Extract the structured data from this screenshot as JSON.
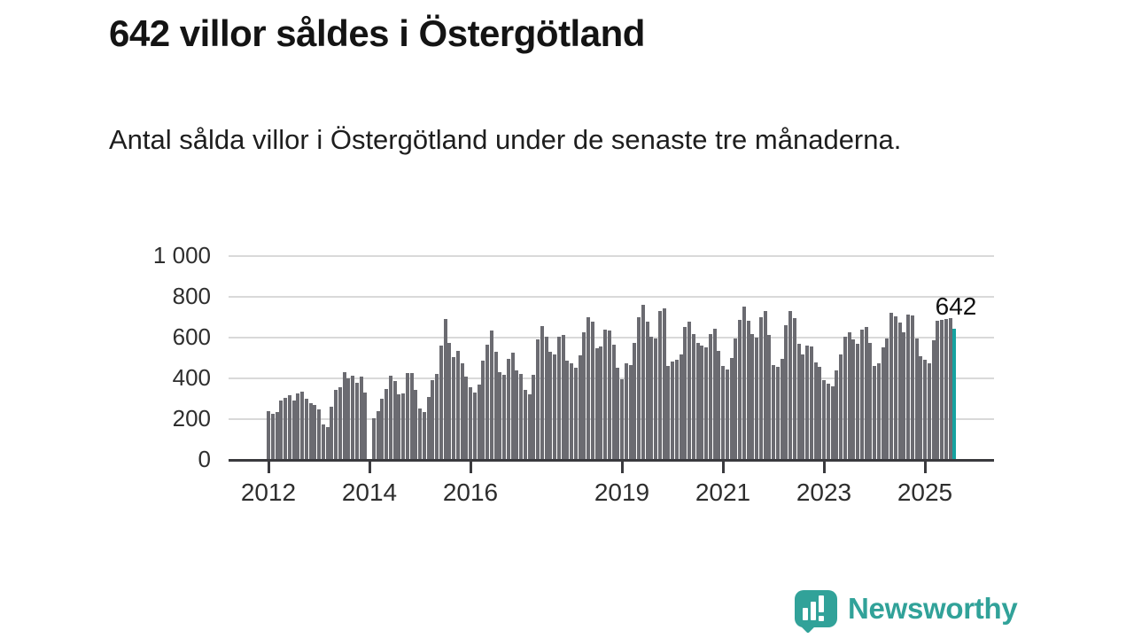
{
  "header": {
    "title": "642 villor såldes i Östergötland",
    "subtitle": "Antal sålda villor i Östergötland under de senaste tre månaderna."
  },
  "chart_data": {
    "type": "bar",
    "title": "642 villor såldes i Östergötland",
    "subtitle": "Antal sålda villor i Östergötland under de senaste tre månaderna.",
    "frequency": "monthly",
    "x_start": "2012-01",
    "x_end": "2025-08",
    "values": [
      239,
      228,
      233,
      293,
      304,
      316,
      293,
      328,
      333,
      300,
      277,
      268,
      250,
      175,
      160,
      260,
      345,
      355,
      430,
      400,
      415,
      378,
      408,
      330,
      null,
      205,
      240,
      300,
      350,
      415,
      385,
      322,
      328,
      428,
      428,
      345,
      252,
      235,
      310,
      390,
      420,
      560,
      690,
      575,
      505,
      535,
      475,
      410,
      358,
      329,
      368,
      486,
      567,
      633,
      532,
      430,
      416,
      496,
      528,
      438,
      423,
      343,
      322,
      416,
      590,
      655,
      604,
      532,
      517,
      604,
      611,
      488,
      474,
      452,
      513,
      626,
      701,
      677,
      549,
      557,
      641,
      636,
      564,
      452,
      394,
      474,
      467,
      575,
      701,
      761,
      677,
      604,
      597,
      732,
      742,
      462,
      481,
      490,
      517,
      652,
      680,
      619,
      575,
      561,
      554,
      616,
      645,
      536,
      459,
      442,
      500,
      594,
      687,
      752,
      681,
      619,
      601,
      699,
      732,
      612,
      467,
      455,
      496,
      662,
      730,
      694,
      568,
      517,
      561,
      557,
      478,
      455,
      390,
      372,
      361,
      438,
      517,
      604,
      626,
      590,
      568,
      641,
      651,
      575,
      462,
      474,
      554,
      595,
      720,
      704,
      672,
      624,
      713,
      710,
      594,
      508,
      490,
      474,
      585,
      684,
      688,
      691,
      694,
      642
    ],
    "highlight_index": 163,
    "highlight_value": 642,
    "annotation_label": "642",
    "bar_color": "#6b6b71",
    "highlight_color": "#16a2a0",
    "ylim": [
      0,
      1000
    ],
    "grid": true,
    "yticks": [
      {
        "value": 0,
        "label": "0"
      },
      {
        "value": 200,
        "label": "200"
      },
      {
        "value": 400,
        "label": "400"
      },
      {
        "value": 600,
        "label": "600"
      },
      {
        "value": 800,
        "label": "800"
      },
      {
        "value": 1000,
        "label": "1 000"
      }
    ],
    "xticks": [
      {
        "label": "2012",
        "month_index": 0
      },
      {
        "label": "2014",
        "month_index": 24
      },
      {
        "label": "2016",
        "month_index": 48
      },
      {
        "label": "2019",
        "month_index": 84
      },
      {
        "label": "2021",
        "month_index": 108
      },
      {
        "label": "2023",
        "month_index": 132
      },
      {
        "label": "2025",
        "month_index": 156
      }
    ]
  },
  "footer": {
    "brand": "Newsworthy",
    "brand_color": "#31a299"
  }
}
